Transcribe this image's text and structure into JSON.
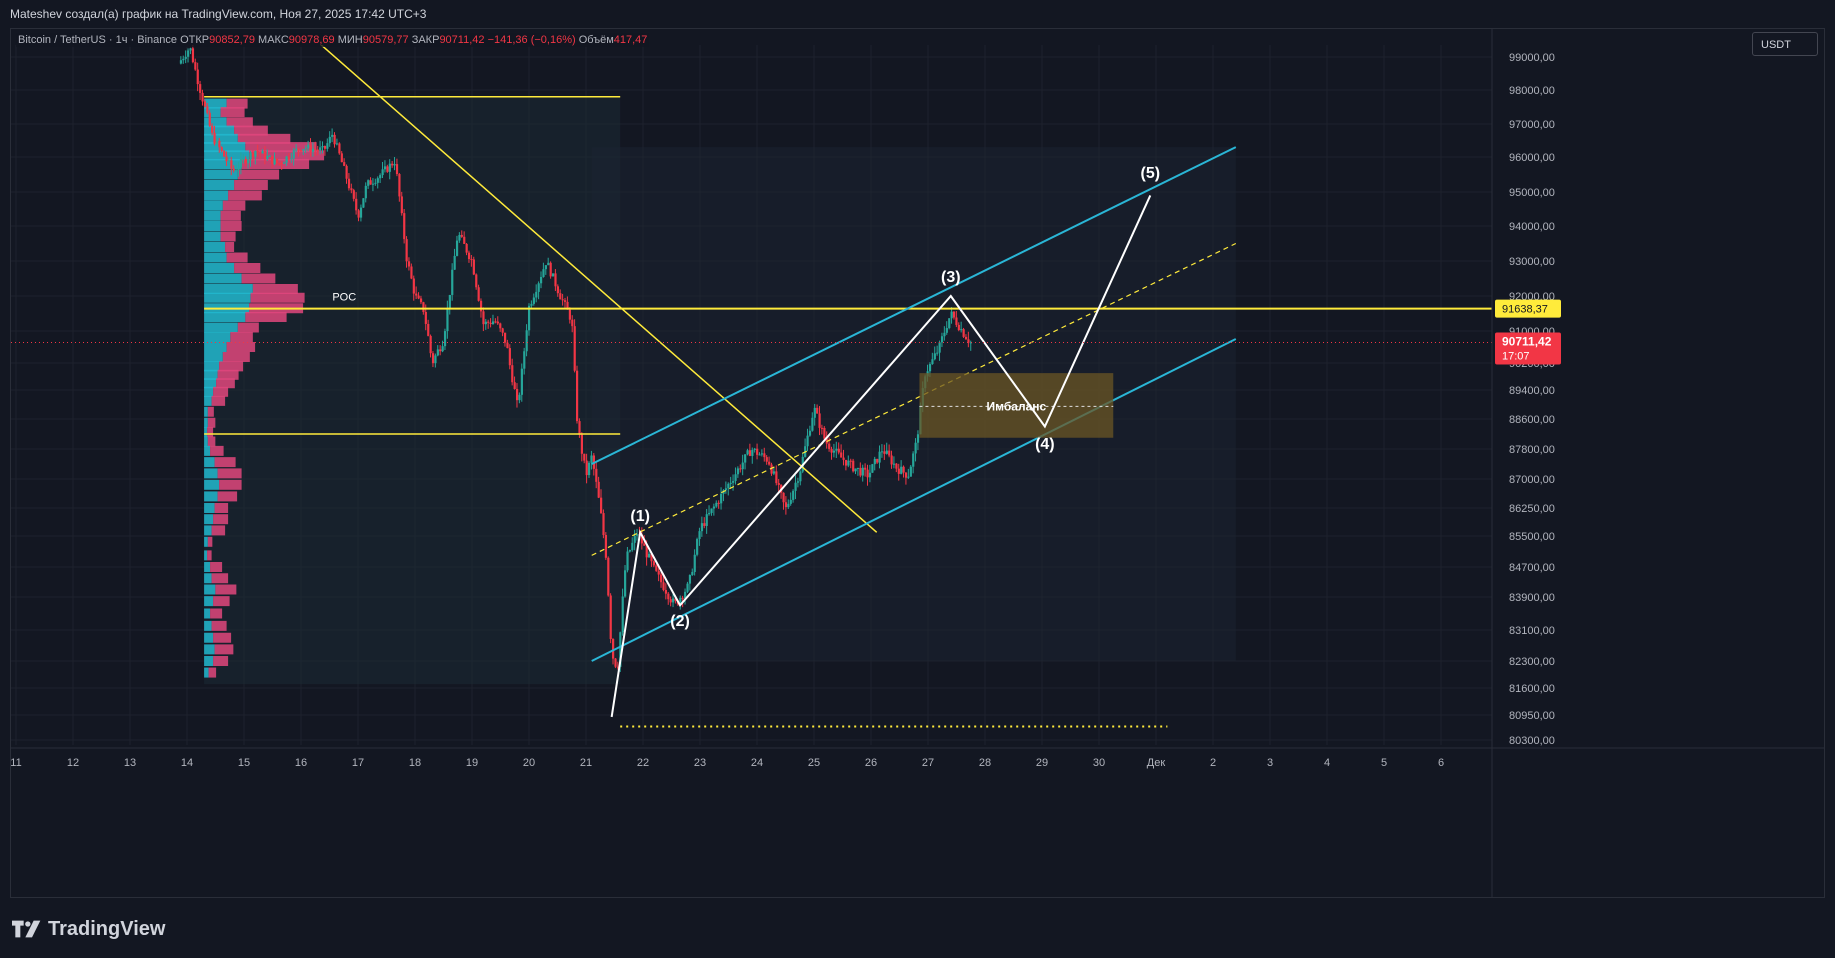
{
  "caption": "Mateshev создал(а) график на TradingView.com, Ноя 27, 2025 17:42 UTC+3",
  "legend": {
    "symbol": "Bitcoin / TetherUS · 1ч · Binance",
    "open_label": "ОТКР",
    "open_value": "90852,79",
    "high_label": "МАКС",
    "high_value": "90978,69",
    "low_label": "МИН",
    "low_value": "90579,77",
    "close_label": "ЗАКР",
    "close_value": "90711,42",
    "change_value": "−141,36 (−0,16%)",
    "volume_label": "Объём",
    "volume_value": "417,47"
  },
  "currency": "USDT",
  "brand": "TradingView",
  "colors": {
    "background": "#131722",
    "bull": "#26a69a",
    "bear": "#f23645",
    "level": "#ffeb3b",
    "channel": "#2ab6d6",
    "vp_up": "#22b8cf",
    "vp_down": "#e0467c",
    "imbalance": "#6b5524"
  },
  "chart_data": {
    "type": "candlestick",
    "timeframe": "1h",
    "y_ticks": [
      "99000,00",
      "98000,00",
      "97000,00",
      "96000,00",
      "95000,00",
      "94000,00",
      "93000,00",
      "92000,00",
      "91000,00",
      "90200,00",
      "89400,00",
      "88600,00",
      "87800,00",
      "87000,00",
      "86250,00",
      "85500,00",
      "84700,00",
      "83900,00",
      "83100,00",
      "82300,00",
      "81600,00",
      "80950,00",
      "80300,00"
    ],
    "x_ticks": [
      "11",
      "12",
      "13",
      "14",
      "15",
      "16",
      "17",
      "18",
      "19",
      "20",
      "21",
      "22",
      "23",
      "24",
      "25",
      "26",
      "27",
      "28",
      "29",
      "30",
      "Дек",
      "2",
      "3",
      "4",
      "5",
      "6"
    ],
    "price_path": [
      [
        13.85,
        98800
      ],
      [
        14.05,
        99300
      ],
      [
        14.2,
        98200
      ],
      [
        14.45,
        96600
      ],
      [
        14.8,
        95600
      ],
      [
        15.2,
        96200
      ],
      [
        15.6,
        95800
      ],
      [
        16.0,
        96300
      ],
      [
        16.4,
        96200
      ],
      [
        16.55,
        96700
      ],
      [
        16.8,
        95400
      ],
      [
        17.0,
        94300
      ],
      [
        17.15,
        95200
      ],
      [
        17.4,
        95500
      ],
      [
        17.65,
        95900
      ],
      [
        17.85,
        93100
      ],
      [
        18.0,
        92000
      ],
      [
        18.15,
        91600
      ],
      [
        18.3,
        90200
      ],
      [
        18.5,
        90800
      ],
      [
        18.75,
        93800
      ],
      [
        19.0,
        93000
      ],
      [
        19.2,
        91200
      ],
      [
        19.4,
        91300
      ],
      [
        19.6,
        90700
      ],
      [
        19.8,
        88900
      ],
      [
        20.0,
        91700
      ],
      [
        20.3,
        93000
      ],
      [
        20.55,
        92000
      ],
      [
        20.75,
        91300
      ],
      [
        20.85,
        88400
      ],
      [
        21.0,
        87100
      ],
      [
        21.1,
        87600
      ],
      [
        21.25,
        86200
      ],
      [
        21.35,
        85000
      ],
      [
        21.45,
        82500
      ],
      [
        21.55,
        82100
      ],
      [
        21.7,
        84900
      ],
      [
        21.9,
        85600
      ],
      [
        22.2,
        84600
      ],
      [
        22.55,
        83700
      ],
      [
        22.8,
        84200
      ],
      [
        23.0,
        85700
      ],
      [
        23.3,
        86400
      ],
      [
        23.6,
        87100
      ],
      [
        23.9,
        87800
      ],
      [
        24.2,
        87500
      ],
      [
        24.5,
        86200
      ],
      [
        24.75,
        87200
      ],
      [
        25.0,
        88900
      ],
      [
        25.2,
        88000
      ],
      [
        25.45,
        87600
      ],
      [
        25.7,
        87300
      ],
      [
        25.95,
        87100
      ],
      [
        26.2,
        87800
      ],
      [
        26.45,
        87300
      ],
      [
        26.65,
        87100
      ],
      [
        26.8,
        88000
      ],
      [
        26.95,
        89900
      ],
      [
        27.2,
        90600
      ],
      [
        27.4,
        91500
      ],
      [
        27.6,
        91000
      ],
      [
        27.75,
        90711
      ]
    ],
    "candle_count": 330,
    "current_price": "90711,42",
    "countdown": "17:07",
    "poc_label": "POC",
    "poc_price_label": "91638,37",
    "poc_price": 91638,
    "levels": [
      97800,
      88200
    ],
    "low_level": 80650,
    "downtrend_line": [
      [
        16.2,
        99600
      ],
      [
        26.1,
        85600
      ]
    ],
    "channel_upper": [
      [
        21.1,
        87400
      ],
      [
        32.4,
        96300
      ]
    ],
    "channel_lower": [
      [
        21.1,
        82300
      ],
      [
        32.4,
        90800
      ]
    ],
    "channel_mid": [
      [
        21.1,
        85000
      ],
      [
        32.4,
        93500
      ]
    ],
    "imbalance_zone": {
      "x0": 26.85,
      "x1": 30.25,
      "y0": 88100,
      "y1": 89900,
      "label": "Имбаланс",
      "mid": 88950
    },
    "wave_path": [
      [
        21.45,
        80900
      ],
      [
        21.95,
        85600
      ],
      [
        22.65,
        83700
      ],
      [
        27.4,
        92000
      ],
      [
        29.05,
        88400
      ],
      [
        30.9,
        94900
      ]
    ],
    "wave_labels": [
      {
        "text": "(1)",
        "x": 21.95,
        "y": 85900
      },
      {
        "text": "(2)",
        "x": 22.65,
        "y": 83200
      },
      {
        "text": "(3)",
        "x": 27.4,
        "y": 92400
      },
      {
        "text": "(4)",
        "x": 29.05,
        "y": 87800
      },
      {
        "text": "(5)",
        "x": 30.9,
        "y": 95400
      }
    ],
    "volume_profile": {
      "x_start": 14.3,
      "rows": [
        [
          97600,
          0.3,
          0.28
        ],
        [
          97350,
          0.22,
          0.32
        ],
        [
          97050,
          0.3,
          0.35
        ],
        [
          96800,
          0.4,
          0.45
        ],
        [
          96550,
          0.45,
          0.7
        ],
        [
          96300,
          0.55,
          0.95
        ],
        [
          96050,
          0.6,
          1.0
        ],
        [
          95800,
          0.5,
          0.9
        ],
        [
          95500,
          0.45,
          0.55
        ],
        [
          95200,
          0.4,
          0.45
        ],
        [
          94900,
          0.32,
          0.45
        ],
        [
          94600,
          0.25,
          0.3
        ],
        [
          94300,
          0.22,
          0.27
        ],
        [
          94000,
          0.22,
          0.28
        ],
        [
          93700,
          0.22,
          0.2
        ],
        [
          93400,
          0.28,
          0.12
        ],
        [
          93100,
          0.3,
          0.28
        ],
        [
          92800,
          0.4,
          0.35
        ],
        [
          92500,
          0.5,
          0.45
        ],
        [
          92200,
          0.65,
          0.6
        ],
        [
          91950,
          0.62,
          0.72
        ],
        [
          91650,
          0.6,
          0.72
        ],
        [
          91400,
          0.55,
          0.55
        ],
        [
          91100,
          0.45,
          0.28
        ],
        [
          90850,
          0.35,
          0.3
        ],
        [
          90600,
          0.3,
          0.38
        ],
        [
          90350,
          0.25,
          0.36
        ],
        [
          90100,
          0.2,
          0.32
        ],
        [
          89850,
          0.18,
          0.28
        ],
        [
          89600,
          0.16,
          0.25
        ],
        [
          89350,
          0.12,
          0.2
        ],
        [
          89100,
          0.1,
          0.18
        ],
        [
          88800,
          0.05,
          0.08
        ],
        [
          88500,
          0.05,
          0.1
        ],
        [
          88250,
          0.04,
          0.08
        ],
        [
          88000,
          0.05,
          0.1
        ],
        [
          87750,
          0.08,
          0.18
        ],
        [
          87450,
          0.14,
          0.28
        ],
        [
          87150,
          0.18,
          0.32
        ],
        [
          86850,
          0.2,
          0.3
        ],
        [
          86550,
          0.18,
          0.26
        ],
        [
          86250,
          0.14,
          0.18
        ],
        [
          85950,
          0.12,
          0.2
        ],
        [
          85650,
          0.1,
          0.18
        ],
        [
          85350,
          0.05,
          0.06
        ],
        [
          85000,
          0.04,
          0.06
        ],
        [
          84700,
          0.08,
          0.16
        ],
        [
          84400,
          0.1,
          0.22
        ],
        [
          84100,
          0.15,
          0.28
        ],
        [
          83800,
          0.12,
          0.22
        ],
        [
          83500,
          0.08,
          0.16
        ],
        [
          83200,
          0.1,
          0.2
        ],
        [
          82900,
          0.12,
          0.24
        ],
        [
          82600,
          0.14,
          0.25
        ],
        [
          82300,
          0.12,
          0.2
        ],
        [
          82000,
          0.06,
          0.1
        ]
      ]
    }
  }
}
